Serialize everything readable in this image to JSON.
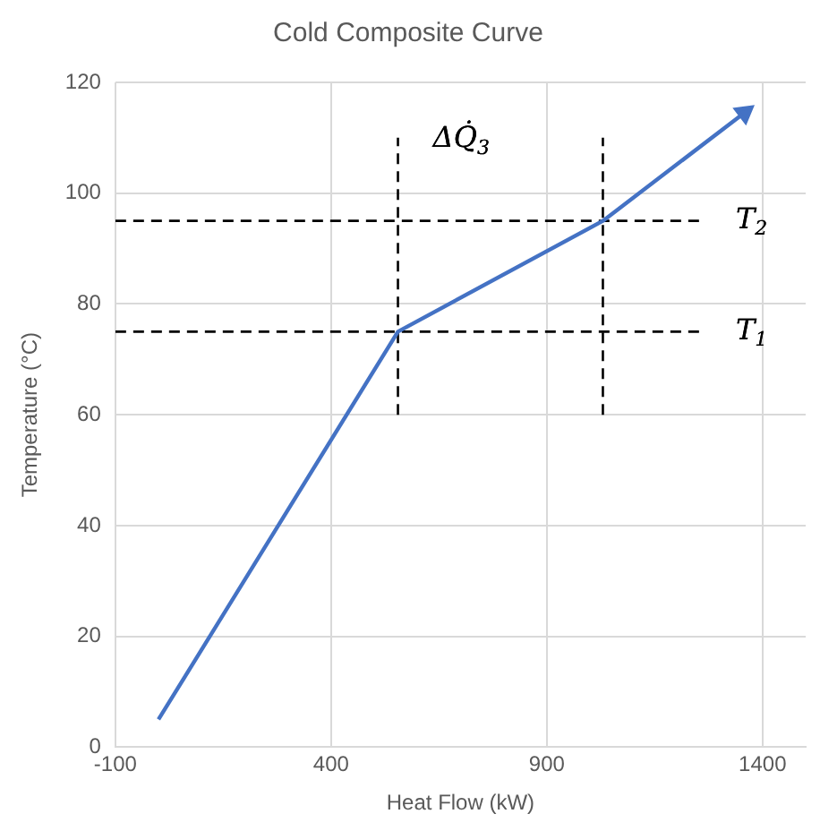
{
  "chart_data": {
    "type": "line",
    "title": "Cold Composite Curve",
    "xlabel": "Heat Flow (kW)",
    "ylabel": "Temperature (°C)",
    "series": [
      {
        "color": "#4472c4",
        "x": [
          0,
          555,
          1030,
          1358
        ],
        "values": [
          5,
          75,
          95,
          114.5
        ],
        "line_style": "solid"
      },
      {
        "color": "#000000",
        "x": [
          -100,
          1255
        ],
        "values": [
          75,
          75
        ],
        "line_style": "dashed"
      },
      {
        "color": "#000000",
        "x": [
          -100,
          1255
        ],
        "values": [
          95,
          95
        ],
        "line_style": "dashed"
      },
      {
        "color": "#000000",
        "x": [
          555,
          555
        ],
        "values": [
          60,
          110
        ],
        "line_style": "dashed"
      },
      {
        "color": "#000000",
        "x": [
          1030,
          1030
        ],
        "values": [
          60,
          110
        ],
        "line_style": "dashed"
      }
    ],
    "annotations": [
      {
        "text": "T$_{1}$",
        "x": 1255,
        "y": 75
      },
      {
        "text": "T$_{2}$",
        "x": 1255,
        "y": 95
      },
      "ΔQ̇$_{3}$"
    ],
    "xlim": [
      -100,
      1500
    ],
    "xticks": [
      -100,
      400,
      900,
      1400
    ],
    "ylim": [
      0,
      120
    ],
    "yticks": [
      0,
      20,
      40,
      60,
      80,
      100,
      120
    ],
    "grid": true,
    "legend": false,
    "marker": "none"
  }
}
